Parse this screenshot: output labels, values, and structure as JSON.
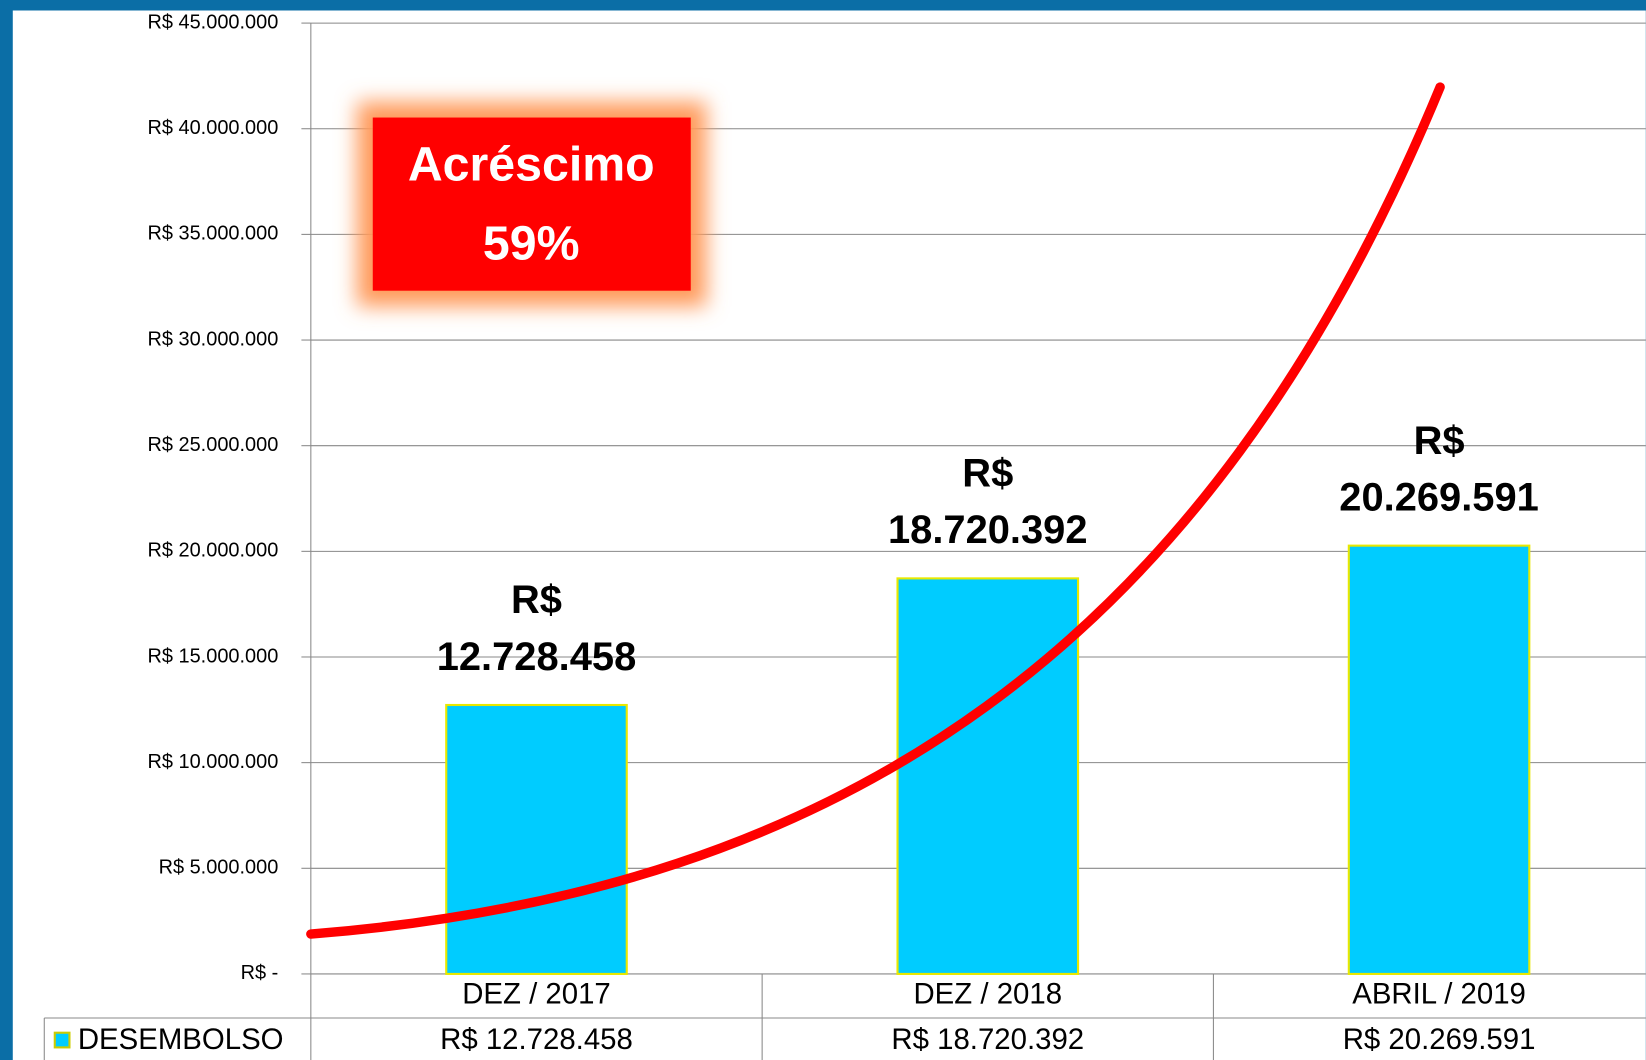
{
  "chart_data": {
    "type": "bar",
    "categories": [
      "DEZ / 2017",
      "DEZ / 2018",
      "ABRIL / 2019"
    ],
    "series": [
      {
        "name": "DESEMBOLSO",
        "color": "#00ccff",
        "values": [
          12728458,
          18720392,
          20269591
        ],
        "value_labels": [
          "R$ 12.728.458",
          "R$ 18.720.392",
          "R$ 20.269.591"
        ]
      }
    ],
    "ylim": [
      0,
      45000000
    ],
    "yticks": [
      {
        "value": 0,
        "label": "R$ -"
      },
      {
        "value": 5000000,
        "label": "R$ 5.000.000"
      },
      {
        "value": 10000000,
        "label": "R$ 10.000.000"
      },
      {
        "value": 15000000,
        "label": "R$ 15.000.000"
      },
      {
        "value": 20000000,
        "label": "R$ 20.000.000"
      },
      {
        "value": 25000000,
        "label": "R$ 25.000.000"
      },
      {
        "value": 30000000,
        "label": "R$ 30.000.000"
      },
      {
        "value": 35000000,
        "label": "R$ 35.000.000"
      },
      {
        "value": 40000000,
        "label": "R$ 40.000.000"
      },
      {
        "value": 45000000,
        "label": "R$ 45.000.000"
      }
    ],
    "grid": true,
    "annotation": [
      "Acréscimo",
      "59%"
    ]
  }
}
